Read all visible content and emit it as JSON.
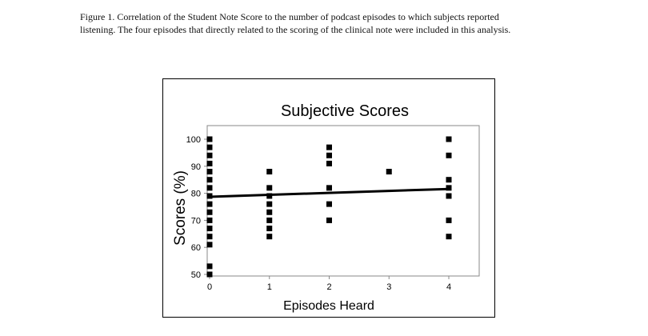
{
  "caption": {
    "line1": "Figure 1.  Correlation of the Student Note Score to the number of podcast episodes to which subjects reported",
    "line2": "listening.   The four episodes that directly related to the scoring of the clinical note were included in this analysis."
  },
  "chart_data": {
    "type": "scatter",
    "title": "Subjective Scores",
    "xlabel": "Episodes Heard",
    "ylabel": "Scores (%)",
    "xlim": [
      0,
      4.5
    ],
    "ylim": [
      50,
      105
    ],
    "xticks": [
      0,
      1,
      2,
      3,
      4
    ],
    "yticks": [
      50,
      60,
      70,
      80,
      90,
      100
    ],
    "grid": false,
    "legend": "none",
    "series": [
      {
        "marker": "square",
        "color": "#000000",
        "points": [
          [
            0,
            100
          ],
          [
            0,
            97
          ],
          [
            0,
            94
          ],
          [
            0,
            91
          ],
          [
            0,
            88
          ],
          [
            0,
            85
          ],
          [
            0,
            82
          ],
          [
            0,
            79
          ],
          [
            0,
            76
          ],
          [
            0,
            73
          ],
          [
            0,
            70
          ],
          [
            0,
            67
          ],
          [
            0,
            64
          ],
          [
            0,
            61
          ],
          [
            0,
            53
          ],
          [
            0,
            50
          ],
          [
            1,
            88
          ],
          [
            1,
            82
          ],
          [
            1,
            79
          ],
          [
            1,
            76
          ],
          [
            1,
            73
          ],
          [
            1,
            70
          ],
          [
            1,
            67
          ],
          [
            1,
            64
          ],
          [
            2,
            97
          ],
          [
            2,
            94
          ],
          [
            2,
            91
          ],
          [
            2,
            82
          ],
          [
            2,
            76
          ],
          [
            2,
            70
          ],
          [
            3,
            88
          ],
          [
            4,
            100
          ],
          [
            4,
            94
          ],
          [
            4,
            85
          ],
          [
            4,
            82
          ],
          [
            4,
            79
          ],
          [
            4,
            70
          ],
          [
            4,
            64
          ]
        ]
      }
    ],
    "trendline": {
      "x": [
        0,
        4
      ],
      "y": [
        78.7,
        81.6
      ],
      "color": "#000000"
    }
  }
}
